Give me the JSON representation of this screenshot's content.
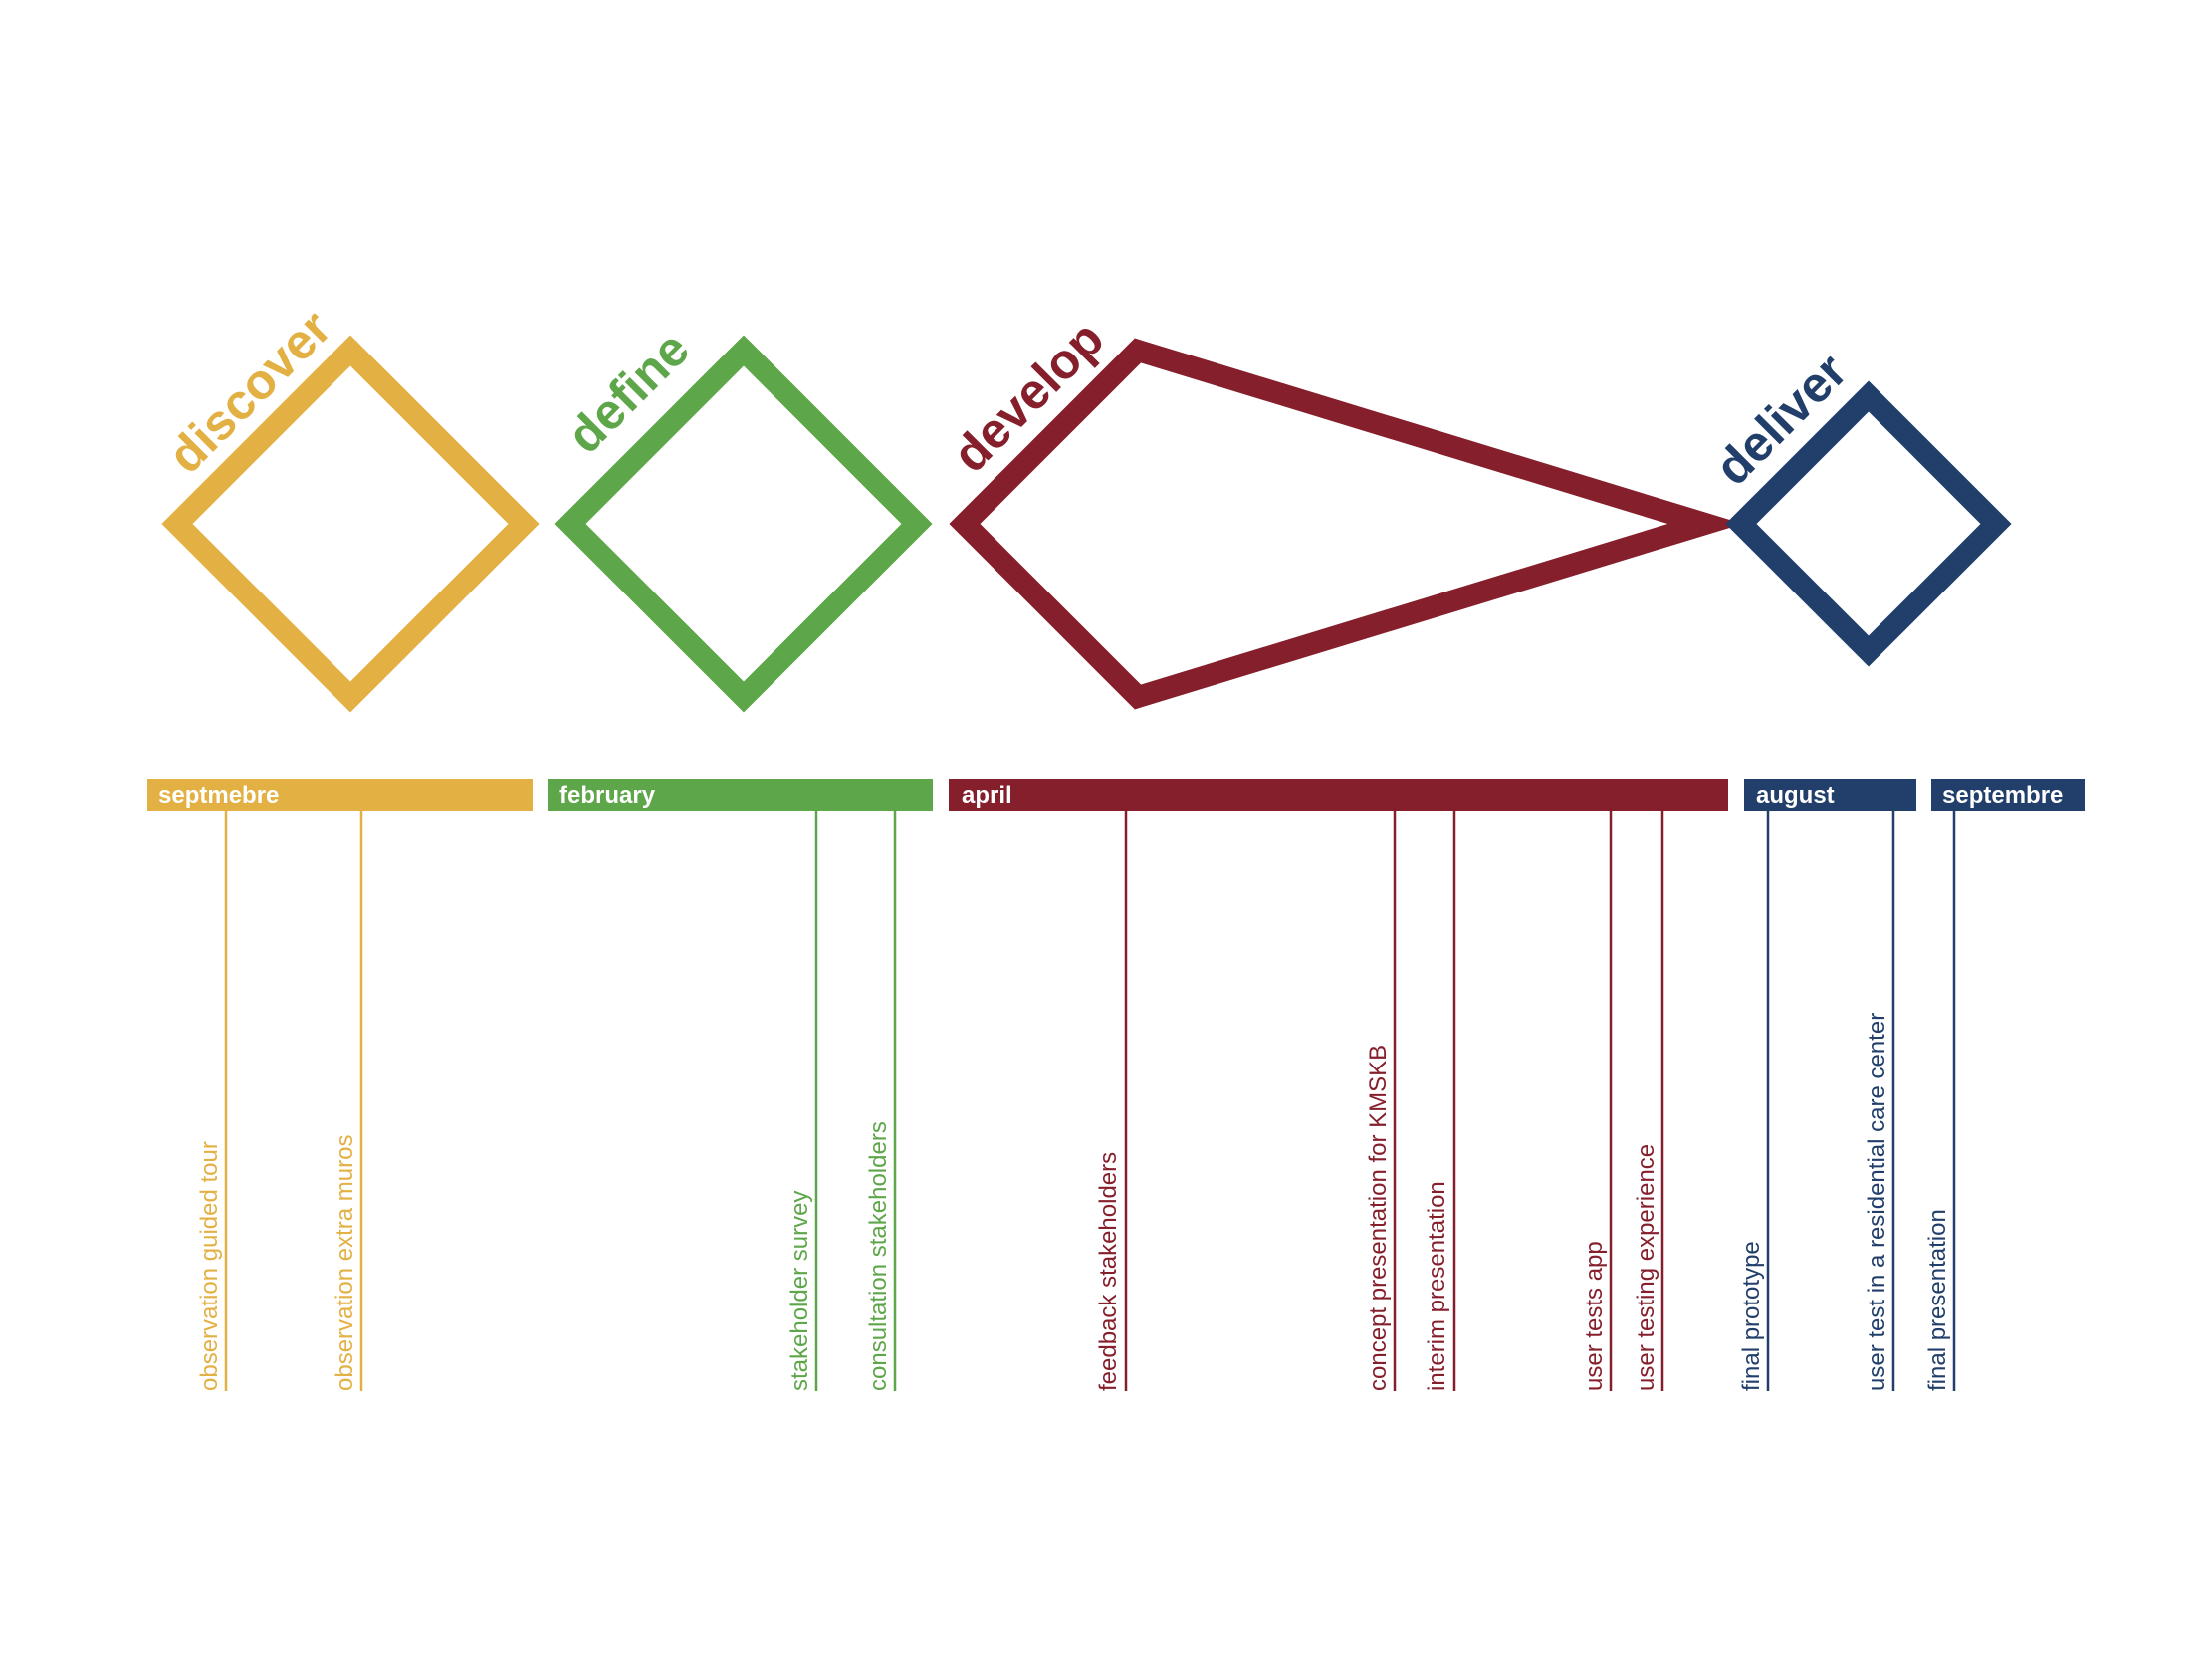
{
  "colors": {
    "discover": "#e3b044",
    "define": "#5ea64a",
    "develop": "#861f2c",
    "deliver": "#213f6a"
  },
  "phases": [
    {
      "id": "discover",
      "label": "discover"
    },
    {
      "id": "define",
      "label": "define"
    },
    {
      "id": "develop",
      "label": "develop"
    },
    {
      "id": "deliver",
      "label": "deliver"
    }
  ],
  "months": [
    {
      "phase": "discover",
      "label": "septmebre"
    },
    {
      "phase": "define",
      "label": "february"
    },
    {
      "phase": "develop",
      "label": "april"
    },
    {
      "phase": "deliver",
      "label": "august"
    },
    {
      "phase": "deliver",
      "label": "septembre"
    }
  ],
  "milestones": [
    {
      "phase": "discover",
      "label": "observation guided tour"
    },
    {
      "phase": "discover",
      "label": "observation extra muros"
    },
    {
      "phase": "define",
      "label": "stakeholder survey"
    },
    {
      "phase": "define",
      "label": "consultation stakeholders"
    },
    {
      "phase": "develop",
      "label": "feedback stakeholders"
    },
    {
      "phase": "develop",
      "label": "concept presentation for KMSKB"
    },
    {
      "phase": "develop",
      "label": "interim presentation"
    },
    {
      "phase": "develop",
      "label": "user tests app"
    },
    {
      "phase": "develop",
      "label": "user testing experience"
    },
    {
      "phase": "deliver",
      "label": "final prototype"
    },
    {
      "phase": "deliver",
      "label": "user test in a residential care center"
    },
    {
      "phase": "deliver",
      "label": "final presentation"
    }
  ]
}
